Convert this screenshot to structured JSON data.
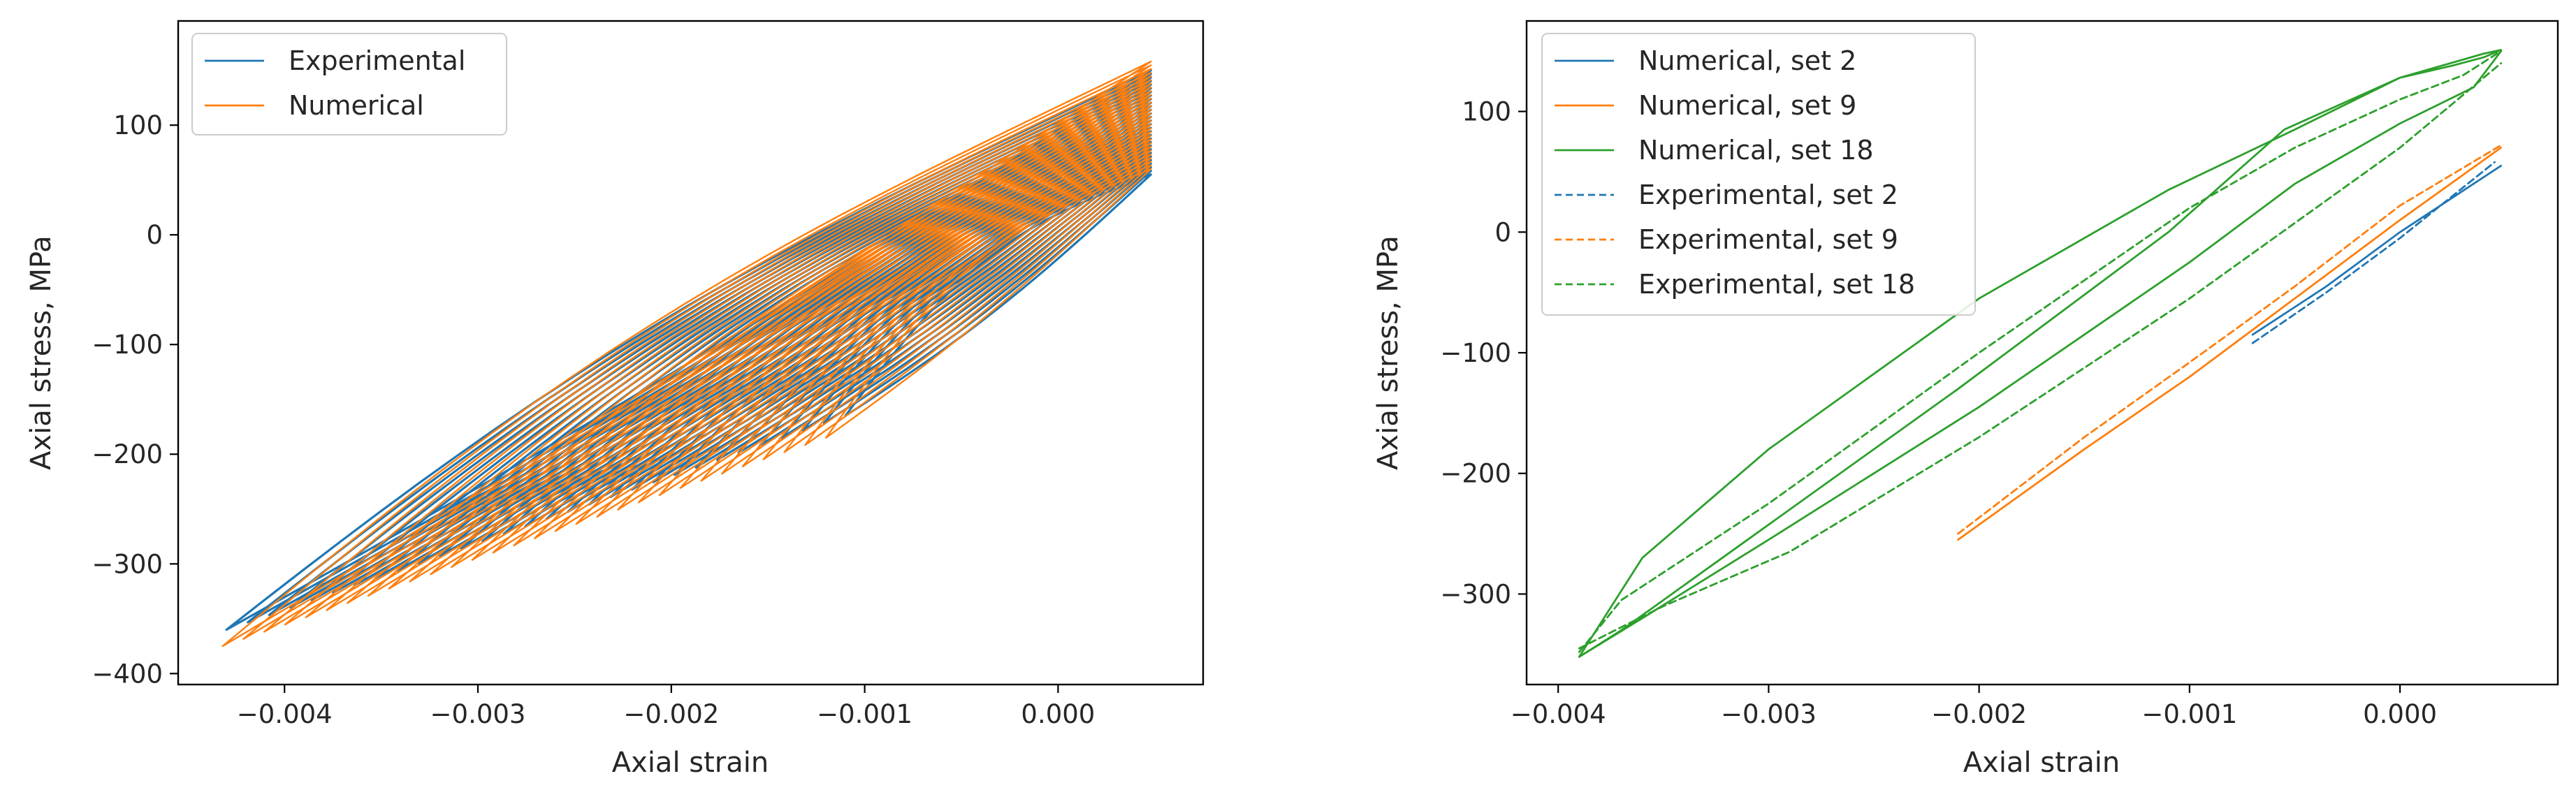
{
  "colors": {
    "blue": "#1f77b4",
    "orange": "#ff7f0e",
    "green": "#2ca02c"
  },
  "chart_data": [
    {
      "id": "left",
      "type": "line",
      "xlabel": "Axial strain",
      "ylabel": "Axial stress, MPa",
      "xlim": [
        -0.00455,
        0.00075
      ],
      "ylim": [
        -410,
        195
      ],
      "xticks": [
        -0.004,
        -0.003,
        -0.002,
        -0.001,
        0.0
      ],
      "xtick_labels": [
        "−0.004",
        "−0.003",
        "−0.002",
        "−0.001",
        "0.000"
      ],
      "yticks": [
        -400,
        -300,
        -200,
        -100,
        0,
        100
      ],
      "ytick_labels": [
        "−400",
        "−300",
        "−200",
        "−100",
        "0",
        "100"
      ],
      "legend": [
        {
          "label": "Experimental",
          "color": "blue",
          "dash": "solid"
        },
        {
          "label": "Numerical",
          "color": "orange",
          "dash": "solid"
        }
      ],
      "loop_sets": [
        {
          "name": "Experimental",
          "color": "blue",
          "width": 3.2,
          "x_top": 0.00048,
          "y_top_first": 150,
          "y_top_last": 55,
          "x_bot_first": -0.0043,
          "x_bot_last": -0.0011,
          "y_bot_first": -360,
          "y_bot_last": -165,
          "count": 30,
          "upper_bulge": 48,
          "lower_bulge": -12
        },
        {
          "name": "Numerical",
          "color": "orange",
          "width": 2.4,
          "x_top": 0.00048,
          "y_top_first": 158,
          "y_top_last": 60,
          "x_bot_first": -0.00432,
          "x_bot_last": -0.0012,
          "y_bot_first": -375,
          "y_bot_last": -185,
          "count": 30,
          "upper_bulge": 55,
          "lower_bulge": -10
        }
      ]
    },
    {
      "id": "right",
      "type": "line",
      "xlabel": "Axial strain",
      "ylabel": "Axial stress, MPa",
      "xlim": [
        -0.00415,
        0.00075
      ],
      "ylim": [
        -375,
        175
      ],
      "xticks": [
        -0.004,
        -0.003,
        -0.002,
        -0.001,
        0.0
      ],
      "xtick_labels": [
        "−0.004",
        "−0.003",
        "−0.002",
        "−0.001",
        "0.000"
      ],
      "yticks": [
        -300,
        -200,
        -100,
        0,
        100
      ],
      "ytick_labels": [
        "−300",
        "−200",
        "−100",
        "0",
        "100"
      ],
      "legend": [
        {
          "label": "Numerical, set 2",
          "color": "blue",
          "dash": "solid"
        },
        {
          "label": "Numerical, set 9",
          "color": "orange",
          "dash": "solid"
        },
        {
          "label": "Numerical, set 18",
          "color": "green",
          "dash": "solid"
        },
        {
          "label": "Experimental, set 2",
          "color": "blue",
          "dash": "dashed"
        },
        {
          "label": "Experimental, set 9",
          "color": "orange",
          "dash": "dashed"
        },
        {
          "label": "Experimental, set 18",
          "color": "green",
          "dash": "dashed"
        }
      ],
      "series": [
        {
          "name": "Numerical, set 18",
          "color": "green",
          "dash": "solid",
          "x": [
            -0.0039,
            -0.0037,
            -0.0031,
            -0.0021,
            -0.0011,
            -0.00055,
            0.0,
            0.0004,
            0.00048,
            0.0004,
            0.00025,
            0.0,
            -0.0005,
            -0.0011,
            -0.002,
            -0.003,
            -0.0036,
            -0.0039
          ],
          "y": [
            -352,
            -330,
            -255,
            -130,
            0,
            85,
            128,
            148,
            151,
            145,
            138,
            128,
            85,
            35,
            -55,
            -180,
            -270,
            -352
          ]
        },
        {
          "name": "Numerical, set 18 inner",
          "color": "green",
          "dash": "solid",
          "x": [
            -0.0039,
            -0.0036,
            -0.003,
            -0.002,
            -0.001,
            -0.0005,
            0.0,
            0.00035,
            0.00048
          ],
          "y": [
            -352,
            -320,
            -255,
            -145,
            -25,
            40,
            90,
            120,
            150
          ]
        },
        {
          "name": "Experimental, set 18",
          "color": "green",
          "dash": "dashed",
          "x": [
            -0.0039,
            -0.0037,
            -0.003,
            -0.002,
            -0.001,
            -0.0005,
            0.0,
            0.0003,
            0.00048
          ],
          "y": [
            -348,
            -305,
            -225,
            -100,
            20,
            70,
            110,
            130,
            150
          ]
        },
        {
          "name": "Experimental, set 18 lower",
          "color": "green",
          "dash": "dashed",
          "x": [
            -0.0039,
            -0.0035,
            -0.0029,
            -0.002,
            -0.001,
            0.0,
            0.00048
          ],
          "y": [
            -345,
            -310,
            -265,
            -170,
            -55,
            70,
            140
          ]
        },
        {
          "name": "Numerical, set 9",
          "color": "orange",
          "dash": "solid",
          "x": [
            -0.0021,
            -0.0015,
            -0.001,
            -0.0005,
            0.0,
            0.00048
          ],
          "y": [
            -255,
            -180,
            -120,
            -55,
            10,
            70
          ]
        },
        {
          "name": "Experimental, set 9",
          "color": "orange",
          "dash": "dashed",
          "x": [
            -0.0021,
            -0.0015,
            -0.001,
            -0.0005,
            0.0,
            0.00048
          ],
          "y": [
            -250,
            -170,
            -108,
            -45,
            22,
            72
          ]
        },
        {
          "name": "Numerical, set 2",
          "color": "blue",
          "dash": "solid",
          "x": [
            -0.0007,
            -0.00035,
            0.0,
            0.00048
          ],
          "y": [
            -85,
            -45,
            0,
            55
          ]
        },
        {
          "name": "Experimental, set 2",
          "color": "blue",
          "dash": "dashed",
          "x": [
            -0.0007,
            -0.00035,
            0.0,
            0.00045
          ],
          "y": [
            -92,
            -50,
            -5,
            58
          ]
        }
      ]
    }
  ]
}
